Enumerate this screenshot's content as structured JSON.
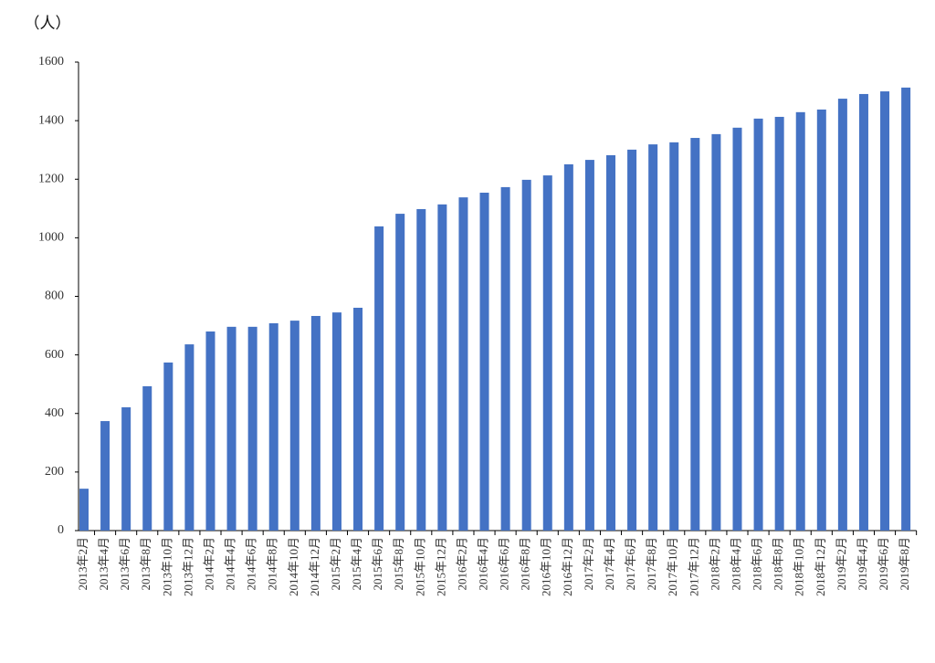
{
  "chart_data": {
    "type": "bar",
    "y_label": "（人）",
    "categories": [
      "2013年2月",
      "2013年4月",
      "2013年6月",
      "2013年8月",
      "2013年10月",
      "2013年12月",
      "2014年2月",
      "2014年4月",
      "2014年6月",
      "2014年8月",
      "2014年10月",
      "2014年12月",
      "2015年2月",
      "2015年4月",
      "2015年6月",
      "2015年8月",
      "2015年10月",
      "2015年12月",
      "2016年2月",
      "2016年4月",
      "2016年6月",
      "2016年8月",
      "2016年10月",
      "2016年12月",
      "2017年2月",
      "2017年4月",
      "2017年6月",
      "2017年8月",
      "2017年10月",
      "2017年12月",
      "2018年2月",
      "2018年4月",
      "2018年6月",
      "2018年8月",
      "2018年10月",
      "2018年12月",
      "2019年2月",
      "2019年4月",
      "2019年6月",
      "2019年8月"
    ],
    "values": [
      143,
      374,
      421,
      493,
      574,
      636,
      680,
      696,
      696,
      708,
      717,
      733,
      745,
      761,
      1039,
      1082,
      1098,
      1114,
      1138,
      1154,
      1173,
      1198,
      1213,
      1251,
      1266,
      1282,
      1301,
      1319,
      1326,
      1341,
      1354,
      1376,
      1407,
      1413,
      1429,
      1438,
      1475,
      1491,
      1500,
      1513
    ],
    "color": "#4472c4",
    "ylim": [
      0,
      1600
    ],
    "yticks": [
      0,
      200,
      400,
      600,
      800,
      1000,
      1200,
      1400,
      1600
    ],
    "grid": false
  }
}
